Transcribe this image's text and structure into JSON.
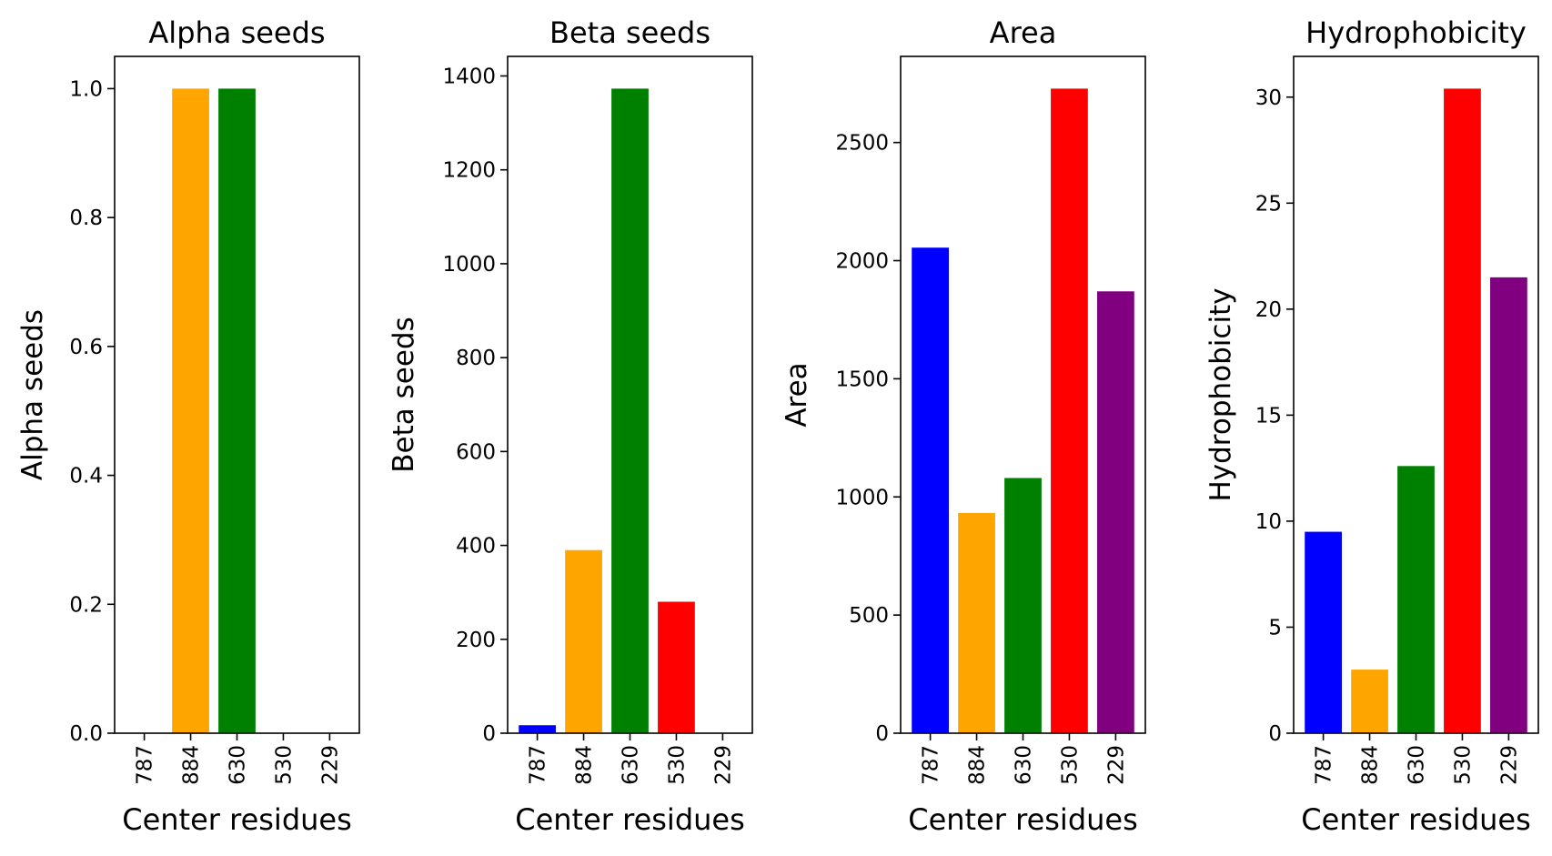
{
  "chart_data": [
    {
      "type": "bar",
      "title": "Alpha seeds",
      "xlabel": "Center residues",
      "ylabel": "Alpha seeds",
      "categories": [
        "787",
        "884",
        "630",
        "530",
        "229"
      ],
      "values": [
        0,
        1.0,
        1.0,
        0,
        0
      ],
      "colors": [
        "#0000ff",
        "#ffa500",
        "#008000",
        "#ff0000",
        "#800080"
      ],
      "ylim": [
        0,
        1.05
      ],
      "yticks": [
        0.0,
        0.2,
        0.4,
        0.6,
        0.8,
        1.0
      ],
      "ytick_labels": [
        "0.0",
        "0.2",
        "0.4",
        "0.6",
        "0.8",
        "1.0"
      ],
      "grid": false
    },
    {
      "type": "bar",
      "title": "Beta seeds",
      "xlabel": "Center residues",
      "ylabel": "Beta seeds",
      "categories": [
        "787",
        "884",
        "630",
        "530",
        "229"
      ],
      "values": [
        17,
        390,
        1373,
        280,
        0
      ],
      "colors": [
        "#0000ff",
        "#ffa500",
        "#008000",
        "#ff0000",
        "#800080"
      ],
      "ylim": [
        0,
        1441.65
      ],
      "yticks": [
        0,
        200,
        400,
        600,
        800,
        1000,
        1200,
        1400
      ],
      "ytick_labels": [
        "0",
        "200",
        "400",
        "600",
        "800",
        "1000",
        "1200",
        "1400"
      ],
      "grid": false
    },
    {
      "type": "bar",
      "title": "Area",
      "xlabel": "Center residues",
      "ylabel": "Area",
      "categories": [
        "787",
        "884",
        "630",
        "530",
        "229"
      ],
      "values": [
        2055,
        932,
        1080,
        2728,
        1870
      ],
      "colors": [
        "#0000ff",
        "#ffa500",
        "#008000",
        "#ff0000",
        "#800080"
      ],
      "ylim": [
        0,
        2864.4
      ],
      "yticks": [
        0,
        500,
        1000,
        1500,
        2000,
        2500
      ],
      "ytick_labels": [
        "0",
        "500",
        "1000",
        "1500",
        "2000",
        "2500"
      ],
      "grid": false
    },
    {
      "type": "bar",
      "title": "Hydrophobicity",
      "xlabel": "Center residues",
      "ylabel": "Hydrophobicity",
      "categories": [
        "787",
        "884",
        "630",
        "530",
        "229"
      ],
      "values": [
        9.5,
        3.0,
        12.6,
        30.4,
        21.5
      ],
      "colors": [
        "#0000ff",
        "#ffa500",
        "#008000",
        "#ff0000",
        "#800080"
      ],
      "ylim": [
        0,
        31.92
      ],
      "yticks": [
        0,
        5,
        10,
        15,
        20,
        25,
        30
      ],
      "ytick_labels": [
        "0",
        "5",
        "10",
        "15",
        "20",
        "25",
        "30"
      ],
      "grid": false
    }
  ]
}
